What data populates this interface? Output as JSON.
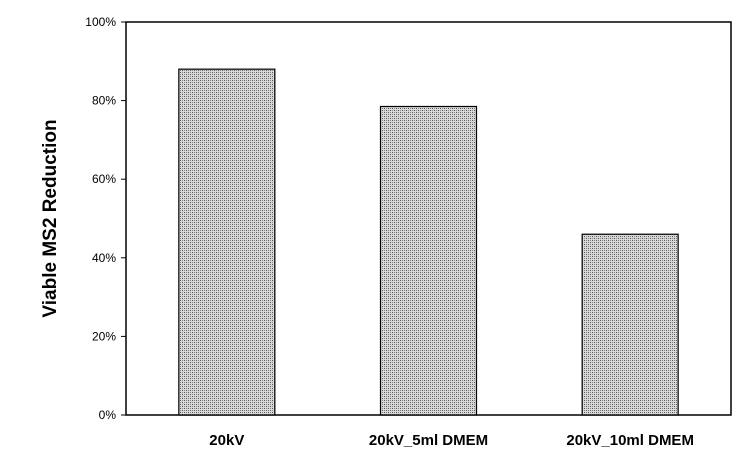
{
  "chart_data": {
    "type": "bar",
    "categories": [
      "20kV",
      "20kV_5ml DMEM",
      "20kV_10ml DMEM"
    ],
    "values": [
      88,
      78.5,
      46
    ],
    "ylabel": "Viable MS2 Reduction",
    "xlabel": "",
    "title": "",
    "ylim": [
      0,
      100
    ],
    "yticks": [
      0,
      20,
      40,
      60,
      80,
      100
    ],
    "ytick_labels": [
      "0%",
      "20%",
      "40%",
      "60%",
      "80%",
      "100%"
    ],
    "grid": false,
    "legend": "none",
    "bar_pattern": "dotted-crosshatch",
    "colors": {
      "bar_fill_base": "#d9d9d9",
      "bar_pattern_dot": "#555555",
      "bar_outline": "#000000",
      "frame": "#000000"
    }
  }
}
